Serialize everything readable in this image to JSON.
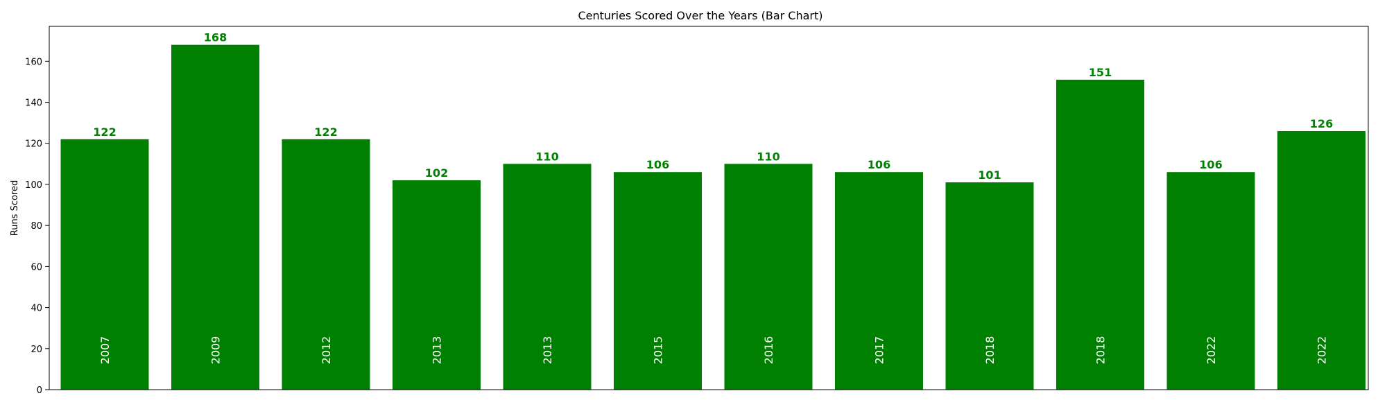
{
  "chart_data": {
    "type": "bar",
    "title": "Centuries Scored Over the Years (Bar Chart)",
    "xlabel": "",
    "ylabel": "Runs Scored",
    "categories": [
      "2007",
      "2009",
      "2012",
      "2013",
      "2013",
      "2015",
      "2016",
      "2017",
      "2018",
      "2018",
      "2022",
      "2022"
    ],
    "values": [
      122,
      168,
      122,
      102,
      110,
      106,
      110,
      106,
      101,
      151,
      106,
      126
    ],
    "ylim": [
      0,
      177
    ],
    "yticks": [
      0,
      20,
      40,
      60,
      80,
      100,
      120,
      140,
      160
    ],
    "grid": false,
    "bar_color": "#008000",
    "value_label_color": "#008000",
    "category_label_color": "#ffffff"
  }
}
